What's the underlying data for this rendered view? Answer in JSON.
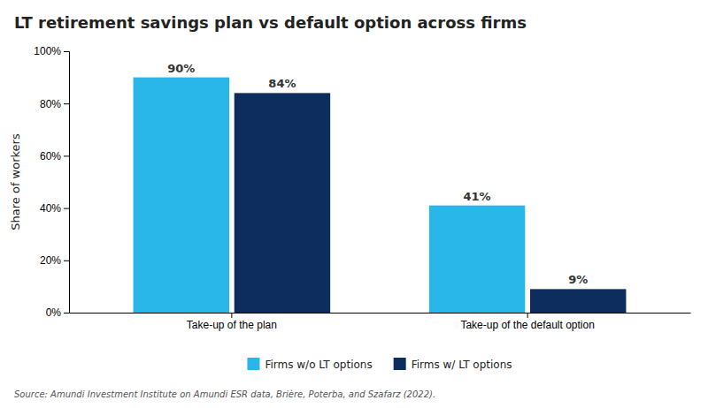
{
  "chart_data": {
    "type": "bar",
    "title": "LT retirement savings plan vs default option across firms",
    "categories": [
      "Take-up of the plan",
      "Take-up of the default option"
    ],
    "series": [
      {
        "name": "Firms w/o LT options",
        "color": "#29b6e8",
        "values": [
          90,
          41
        ],
        "value_labels": [
          "90%",
          "41%"
        ]
      },
      {
        "name": "Firms w/ LT options",
        "color": "#0d2d5e",
        "values": [
          84,
          9
        ],
        "value_labels": [
          "84%",
          "9%"
        ]
      }
    ],
    "ylabel": "Share of workers",
    "ylim": [
      0,
      100
    ],
    "yticks": [
      {
        "value": 0,
        "label": "0%"
      },
      {
        "value": 20,
        "label": "20%"
      },
      {
        "value": 40,
        "label": "40%"
      },
      {
        "value": 60,
        "label": "60%"
      },
      {
        "value": 80,
        "label": "80%"
      },
      {
        "value": 100,
        "label": "100%"
      }
    ],
    "grid": false,
    "legend": "bottom",
    "data_labels": true,
    "annotations": [
      "Source: Amundi Investment Institute on Amundi ESR data, Brière, Poterba, and Szafarz (2022)."
    ]
  }
}
